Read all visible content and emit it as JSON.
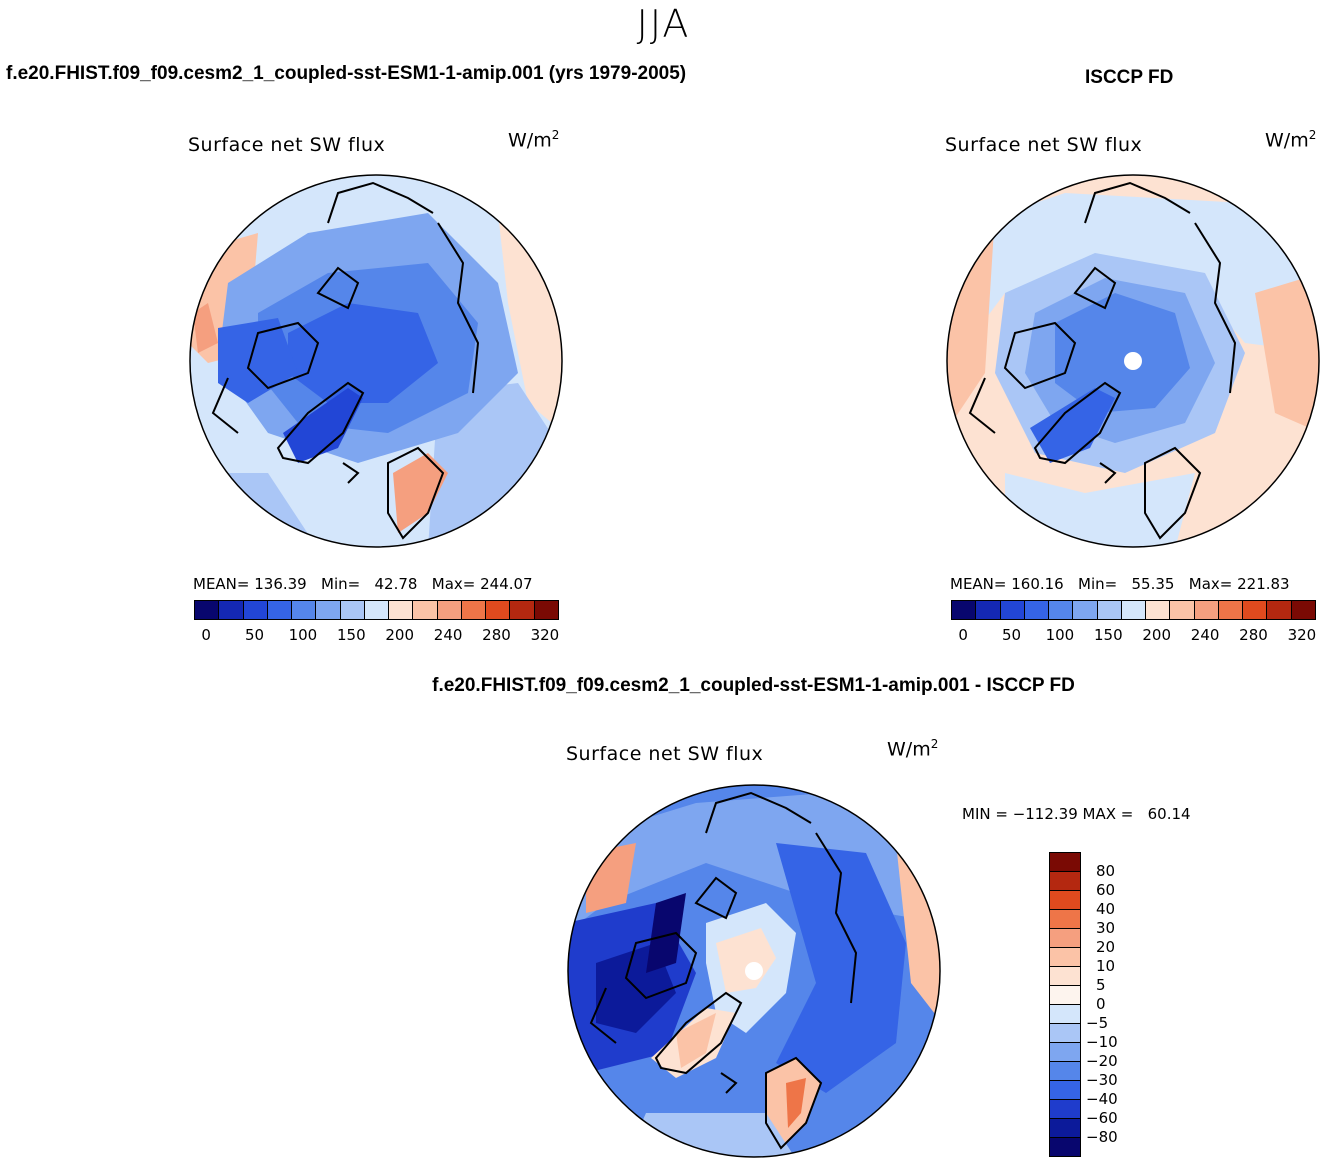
{
  "season": "JJA",
  "panels": {
    "model": {
      "caption": "f.e20.FHIST.f09_f09.cesm2_1_coupled-sst-ESM1-1-amip.001 (yrs 1979-2005)",
      "title": "Surface net SW flux",
      "unit_base": "W/m",
      "unit_sup": "2",
      "stats": "MEAN= 136.39   Min=   42.78   Max= 244.07",
      "colorbar_ticks": [
        "0",
        "50",
        "100",
        "150",
        "200",
        "240",
        "280",
        "320"
      ]
    },
    "obs": {
      "caption": "ISCCP FD",
      "title": "Surface net SW flux",
      "unit_base": "W/m",
      "unit_sup": "2",
      "stats": "MEAN= 160.16   Min=   55.35   Max= 221.83",
      "colorbar_ticks": [
        "0",
        "50",
        "100",
        "150",
        "200",
        "240",
        "280",
        "320"
      ]
    },
    "diff": {
      "caption": "f.e20.FHIST.f09_f09.cesm2_1_coupled-sst-ESM1-1-amip.001 - ISCCP FD",
      "title": "Surface net SW flux",
      "unit_base": "W/m",
      "unit_sup": "2",
      "minmax": "MIN = −112.39 MAX =   60.14",
      "colorbar_labels": [
        "80",
        "60",
        "40",
        "30",
        "20",
        "10",
        "5",
        "0",
        "−5",
        "−10",
        "−20",
        "−30",
        "−40",
        "−60",
        "−80"
      ]
    }
  },
  "colors": {
    "abs_scale": [
      "#08066e",
      "#1428b4",
      "#2246d6",
      "#3564e6",
      "#5586ea",
      "#7ea6f0",
      "#aac6f6",
      "#d4e6fb",
      "#fde2d2",
      "#fbc3a7",
      "#f59f7f",
      "#ee7548",
      "#e04a1e",
      "#b42810",
      "#7a0a04"
    ],
    "diff_scale": [
      "#7a0a04",
      "#b42810",
      "#e04a1e",
      "#ee7548",
      "#f59f7f",
      "#fbc3a7",
      "#fde2d2",
      "#fdf4ee",
      "#d4e6fb",
      "#aac6f6",
      "#7ea6f0",
      "#5586ea",
      "#3564e6",
      "#1f3ccc",
      "#0c1a9a",
      "#08066e"
    ]
  }
}
